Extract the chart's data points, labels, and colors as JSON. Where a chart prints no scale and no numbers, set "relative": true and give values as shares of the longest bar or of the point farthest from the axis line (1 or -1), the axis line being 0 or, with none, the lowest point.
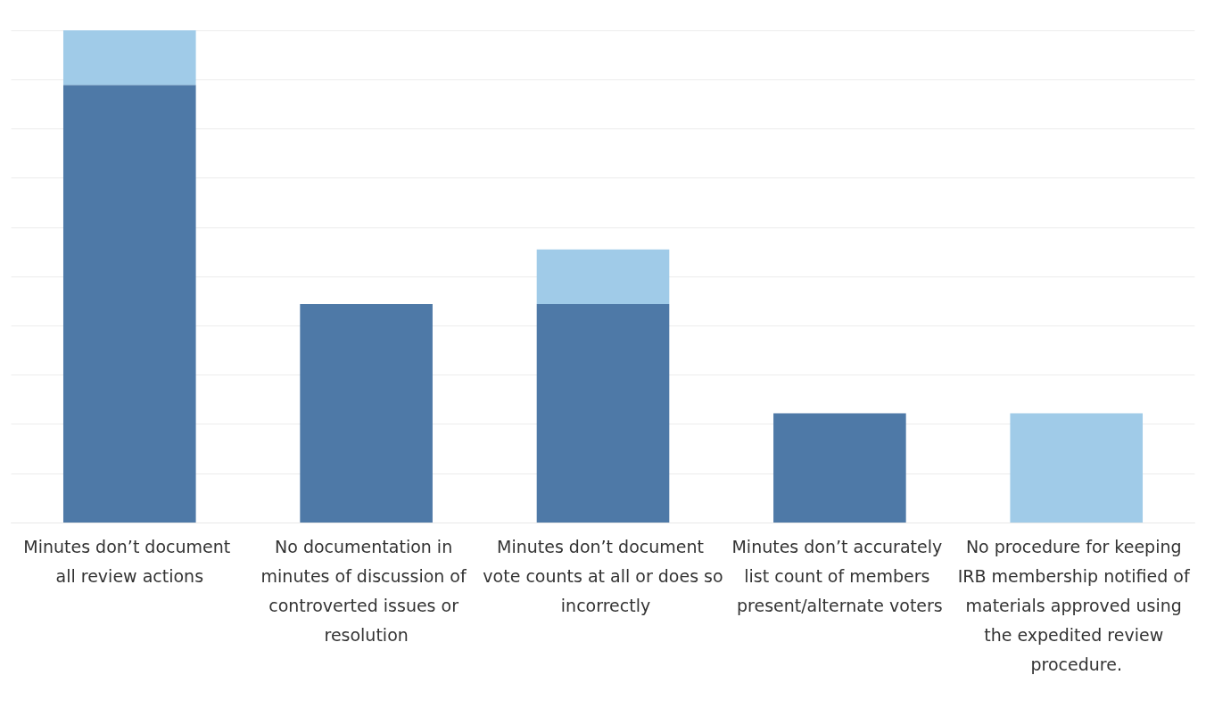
{
  "chart_data": {
    "type": "bar",
    "relative": true,
    "stacked": true,
    "grid": "y",
    "categories": [
      "Minutes don’t document all review actions",
      "No documentation in minutes of discussion of controverted issues or resolution",
      "Minutes don’t document vote counts at all or does so incorrectly",
      "Minutes don’t accurately list count of members present/alternate voters",
      "No procedure for keeping IRB membership notified of materials approved using the expedited review procedure."
    ],
    "series": [
      {
        "color": "#4e79a7",
        "values": [
          0.889,
          0.444,
          0.444,
          0.222,
          null
        ]
      },
      {
        "color": "#a0cbe8",
        "values": [
          0.111,
          null,
          0.111,
          null,
          0.222
        ]
      }
    ]
  }
}
